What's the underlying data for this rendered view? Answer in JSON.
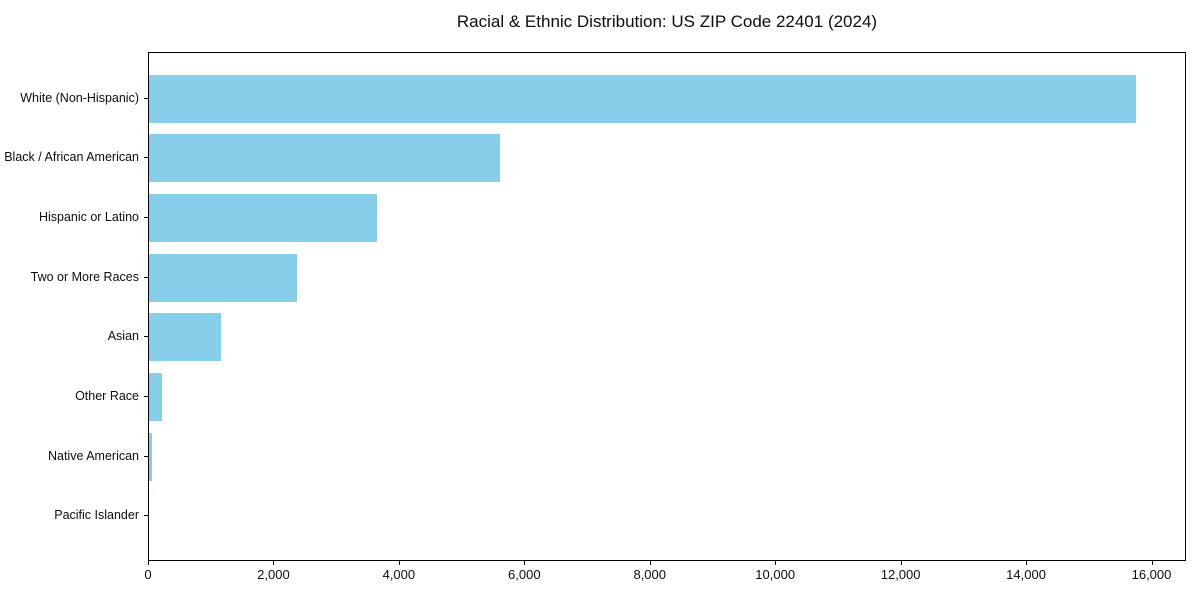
{
  "chart_data": {
    "type": "bar",
    "orientation": "horizontal",
    "title": "Racial & Ethnic Distribution: US ZIP Code 22401 (2024)",
    "categories": [
      "White (Non-Hispanic)",
      "Black / African American",
      "Hispanic or Latino",
      "Two or More Races",
      "Asian",
      "Other Race",
      "Native American",
      "Pacific Islander"
    ],
    "values": [
      15770,
      5600,
      3650,
      2360,
      1145,
      200,
      55,
      0
    ],
    "xlabel": "",
    "ylabel": "",
    "xlim": [
      0,
      16550
    ],
    "x_ticks": [
      0,
      2000,
      4000,
      6000,
      8000,
      10000,
      12000,
      14000,
      16000
    ],
    "x_tick_labels": [
      "0",
      "2,000",
      "4,000",
      "6,000",
      "8,000",
      "10,000",
      "12,000",
      "14,000",
      "16,000"
    ],
    "bar_color": "#87CEEB",
    "frame_color": "#000000",
    "background_color": "#ffffff",
    "grid": false,
    "legend_position": "none"
  }
}
